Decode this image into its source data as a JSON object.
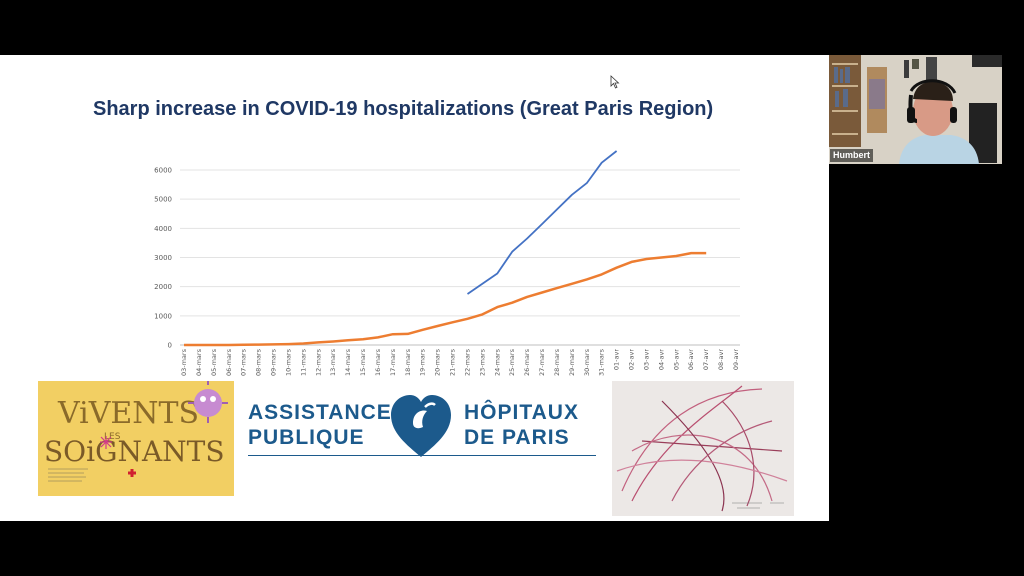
{
  "slide": {
    "title": "Sharp increase in COVID-19 hospitalizations (Great Paris Region)"
  },
  "logo": {
    "line1_left": "ASSISTANCE",
    "line2_left": "PUBLIQUE",
    "line1_right": "HÔPITAUX",
    "line2_right": "DE PARIS",
    "color": "#1c5a8c"
  },
  "drawing_left": {
    "text_line1": "ViVENTS",
    "text_small": "LES",
    "text_line2": "SOiGNANTS"
  },
  "participant": {
    "name": "Humbert"
  },
  "colors": {
    "blue_series": "#4472c4",
    "orange_series": "#ed7d31",
    "title": "#1f3864"
  },
  "chart_data": {
    "type": "line",
    "title": "",
    "xlabel": "",
    "ylabel": "",
    "ylim": [
      0,
      6000
    ],
    "yticks": [
      "0",
      "1000",
      "2000",
      "3000",
      "4000",
      "5000",
      "6000"
    ],
    "grid": true,
    "x": [
      "03-mars",
      "04-mars",
      "05-mars",
      "06-mars",
      "07-mars",
      "08-mars",
      "09-mars",
      "10-mars",
      "11-mars",
      "12-mars",
      "13-mars",
      "14-mars",
      "15-mars",
      "16-mars",
      "17-mars",
      "18-mars",
      "19-mars",
      "20-mars",
      "21-mars",
      "22-mars",
      "23-mars",
      "24-mars",
      "25-mars",
      "26-mars",
      "27-mars",
      "28-mars",
      "29-mars",
      "30-mars",
      "31-mars",
      "01-avr",
      "02-avr",
      "03-avr",
      "04-avr",
      "05-avr",
      "06-avr",
      "07-avr",
      "08-avr",
      "09-avr"
    ],
    "series": [
      {
        "color": "#4472c4",
        "values": [
          null,
          null,
          null,
          null,
          null,
          null,
          null,
          null,
          null,
          null,
          null,
          null,
          null,
          null,
          null,
          null,
          null,
          null,
          null,
          1750,
          2100,
          2450,
          3200,
          3650,
          4150,
          4650,
          5150,
          5550,
          6250,
          6650,
          null,
          null,
          null,
          null,
          null,
          null,
          null,
          null
        ]
      },
      {
        "color": "#ed7d31",
        "values": [
          0,
          0,
          0,
          0,
          10,
          15,
          20,
          30,
          50,
          90,
          120,
          160,
          200,
          260,
          370,
          380,
          520,
          650,
          780,
          900,
          1050,
          1300,
          1450,
          1650,
          1800,
          1950,
          2100,
          2250,
          2420,
          2650,
          2850,
          2950,
          3000,
          3050,
          3150,
          3150,
          null,
          null
        ]
      }
    ]
  }
}
